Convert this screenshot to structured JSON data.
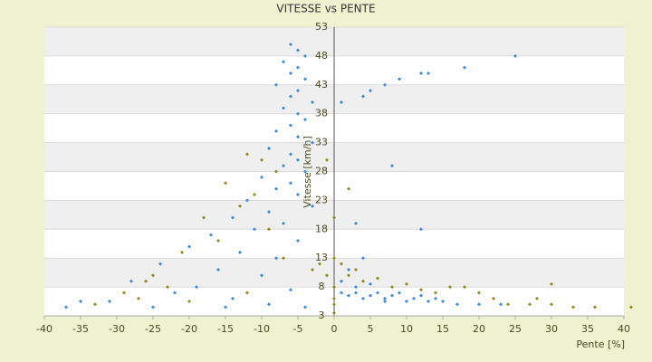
{
  "chart_data": {
    "type": "scatter",
    "title": "VITESSE vs PENTE",
    "xlabel": "Pente [%]",
    "ylabel": "Vitesse [km/h]",
    "xlim": [
      -40,
      40
    ],
    "xticks": [
      -40,
      -35,
      -30,
      -25,
      -20,
      -15,
      -10,
      -5,
      0,
      5,
      10,
      15,
      20,
      25,
      30,
      35,
      40
    ],
    "ylim": [
      3,
      53
    ],
    "yticks": [
      3,
      8,
      13,
      18,
      23,
      28,
      33,
      38,
      43,
      48,
      53
    ],
    "grid": true,
    "series": [
      {
        "color": "#3a8ad6",
        "x": [
          -6,
          -5,
          -4,
          -7,
          -5,
          -6,
          -4,
          -8,
          -5,
          -6,
          -3,
          -7,
          -5,
          -4,
          -6,
          -8,
          -5,
          -3,
          -9,
          -6,
          -5,
          -7,
          -4,
          -10,
          -6,
          -8,
          -5,
          -12,
          -3,
          -9,
          -14,
          -7,
          -11,
          -17,
          -5,
          -20,
          -13,
          -8,
          -24,
          -16,
          -10,
          -28,
          -19,
          -6,
          -22,
          -14,
          -31,
          -35,
          -9,
          -25,
          -37,
          -15,
          -4,
          1,
          2,
          3,
          4,
          5,
          6,
          7,
          8,
          9,
          10,
          11,
          12,
          13,
          14,
          15,
          17,
          20,
          23,
          3,
          5,
          7,
          1,
          2,
          4,
          3,
          8,
          12,
          4,
          5,
          7,
          9,
          12,
          13,
          18,
          25,
          1
        ],
        "values": [
          50,
          49,
          48,
          47,
          46,
          45,
          44,
          43,
          42,
          41,
          40,
          39,
          38,
          37,
          36,
          35,
          34,
          33,
          32,
          31,
          30,
          29,
          28,
          27,
          26,
          25,
          24,
          23,
          22,
          21,
          20,
          19,
          18,
          17,
          16,
          15,
          14,
          13,
          12,
          11,
          10,
          9,
          8,
          7.5,
          7,
          6,
          5.5,
          5.5,
          5,
          4.5,
          4.5,
          4.5,
          4.5,
          7,
          6.5,
          7,
          6,
          6.5,
          7,
          6,
          6.5,
          7,
          5.5,
          6,
          6.5,
          5.5,
          6,
          5.5,
          5,
          5,
          5,
          8,
          8.5,
          5.5,
          9,
          11,
          13,
          19,
          29,
          18,
          41,
          42,
          43,
          44,
          45,
          45,
          46,
          48,
          40
        ]
      },
      {
        "color": "#8c8c1e",
        "x": [
          -12,
          -10,
          -8,
          -15,
          -11,
          -13,
          -18,
          -9,
          -16,
          -21,
          -7,
          -25,
          -26,
          -23,
          -29,
          -27,
          -33,
          -20,
          -12,
          -3,
          -2,
          -1,
          0,
          1,
          2,
          3,
          4,
          6,
          8,
          10,
          12,
          14,
          16,
          18,
          20,
          22,
          24,
          27,
          28,
          30,
          30,
          33,
          36,
          41,
          0,
          0,
          0,
          0,
          0,
          -1,
          2
        ],
        "values": [
          31,
          30,
          28,
          26,
          24,
          22,
          20,
          18,
          16,
          14,
          13,
          10,
          9,
          8,
          7,
          6,
          5,
          5.5,
          7,
          11,
          12,
          10,
          13,
          12,
          10,
          11,
          9,
          9.5,
          8,
          8.5,
          7.5,
          7,
          8,
          8,
          7,
          6,
          5,
          5,
          6,
          8.5,
          5,
          4.5,
          4.5,
          4.5,
          3.5,
          5,
          6,
          8,
          20,
          30,
          25
        ]
      }
    ]
  }
}
